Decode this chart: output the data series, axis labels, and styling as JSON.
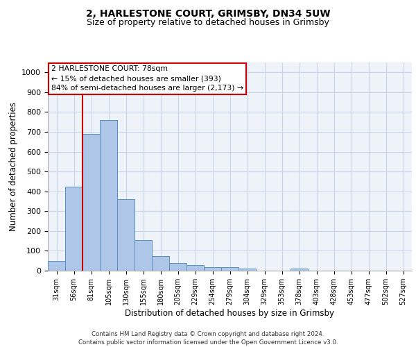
{
  "title1": "2, HARLESTONE COURT, GRIMSBY, DN34 5UW",
  "title2": "Size of property relative to detached houses in Grimsby",
  "xlabel": "Distribution of detached houses by size in Grimsby",
  "ylabel": "Number of detached properties",
  "categories": [
    "31sqm",
    "56sqm",
    "81sqm",
    "105sqm",
    "130sqm",
    "155sqm",
    "180sqm",
    "205sqm",
    "229sqm",
    "254sqm",
    "279sqm",
    "304sqm",
    "329sqm",
    "353sqm",
    "378sqm",
    "403sqm",
    "428sqm",
    "453sqm",
    "477sqm",
    "502sqm",
    "527sqm"
  ],
  "values": [
    50,
    425,
    690,
    760,
    360,
    155,
    75,
    40,
    27,
    18,
    17,
    10,
    0,
    0,
    10,
    0,
    0,
    0,
    0,
    0,
    0
  ],
  "bar_color": "#aec6e8",
  "bar_edge_color": "#5a8fc4",
  "grid_color": "#c8d8e8",
  "background_color": "#eef2f9",
  "annotation_box_text": "2 HARLESTONE COURT: 78sqm\n← 15% of detached houses are smaller (393)\n84% of semi-detached houses are larger (2,173) →",
  "vline_color": "#cc0000",
  "annotation_box_color": "#ffffff",
  "annotation_box_edge_color": "#cc0000",
  "footer_line1": "Contains HM Land Registry data © Crown copyright and database right 2024.",
  "footer_line2": "Contains public sector information licensed under the Open Government Licence v3.0.",
  "ylim": [
    0,
    1050
  ],
  "yticks": [
    0,
    100,
    200,
    300,
    400,
    500,
    600,
    700,
    800,
    900,
    1000
  ],
  "vline_x": 1.5
}
